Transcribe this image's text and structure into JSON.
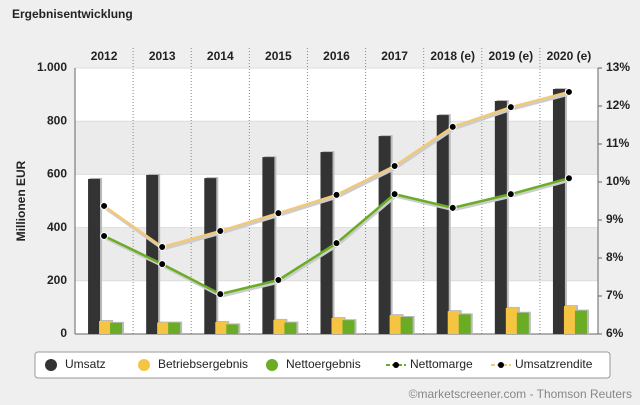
{
  "chart_data": {
    "type": "bar",
    "title": "Ergebnisentwicklung",
    "y_label": "Millionen EUR",
    "source": "©marketscreener.com - Thomson Reuters",
    "categories": [
      "2012",
      "2013",
      "2014",
      "2015",
      "2016",
      "2017",
      "2018 (e)",
      "2019 (e)",
      "2020 (e)"
    ],
    "series": [
      {
        "name": "Umsatz",
        "type": "bar",
        "color": "#333333",
        "values": [
          583,
          598,
          586,
          665,
          684,
          744,
          823,
          876,
          921
        ]
      },
      {
        "name": "Betriebsergebnis",
        "type": "bar",
        "color": "#f6c443",
        "values": [
          49,
          43,
          45,
          53,
          60,
          71,
          86,
          98,
          105
        ]
      },
      {
        "name": "Nettoergebnis",
        "type": "bar",
        "color": "#6aad24",
        "values": [
          42,
          43,
          36,
          43,
          52,
          64,
          74,
          80,
          88
        ]
      },
      {
        "name": "Nettomarge",
        "type": "line",
        "axis": "y2",
        "color": "#6aad24",
        "values": [
          8.58,
          7.84,
          7.05,
          7.42,
          8.39,
          9.68,
          9.32,
          9.68,
          10.1
        ]
      },
      {
        "name": "Umsatzrendite",
        "type": "line",
        "axis": "y2",
        "color": "#f2c978",
        "values": [
          9.37,
          8.29,
          8.71,
          9.18,
          9.66,
          10.42,
          11.45,
          11.97,
          12.37
        ]
      }
    ],
    "ylim": [
      0,
      1000
    ],
    "yticks": [
      0,
      200,
      400,
      600,
      800,
      {
        "value": 1000,
        "label": "1.000"
      }
    ],
    "y2lim": [
      6,
      13
    ],
    "y2ticks": [
      {
        "value": 6,
        "label": "6%"
      },
      {
        "value": 7,
        "label": "7%"
      },
      {
        "value": 8,
        "label": "8%"
      },
      {
        "value": 9,
        "label": "9%"
      },
      {
        "value": 10,
        "label": "10%"
      },
      {
        "value": 11,
        "label": "11%"
      },
      {
        "value": 12,
        "label": "12%"
      },
      {
        "value": 13,
        "label": "13%"
      }
    ],
    "grid": true,
    "legend": "bottom"
  }
}
